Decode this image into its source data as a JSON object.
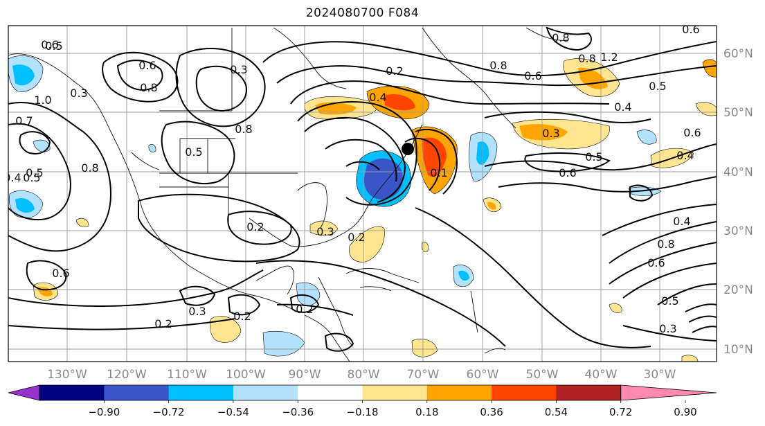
{
  "title": "2024080700 F084",
  "lon_labels": [
    "130°W",
    "120°W",
    "110°W",
    "100°W",
    "90°W",
    "80°W",
    "70°W",
    "60°W",
    "50°W",
    "40°W",
    "30°W"
  ],
  "lat_labels": [
    "60°N",
    "50°N",
    "40°N",
    "30°N",
    "20°N",
    "10°N"
  ],
  "colorbar": {
    "ticks": [
      "−0.90",
      "−0.72",
      "−0.54",
      "−0.36",
      "−0.18",
      "0.18",
      "0.36",
      "0.54",
      "0.72",
      "0.90"
    ],
    "colors": [
      "#9932cc",
      "#000080",
      "#3a55c8",
      "#00bfff",
      "#b3e2ff",
      "#ffffff",
      "#ffe58f",
      "#ffa500",
      "#ff4500",
      "#b22222",
      "#ff88b0"
    ]
  },
  "contour_labels": [
    "0.5",
    "0.3",
    "0.7",
    "0.6",
    "0.8",
    "1.0",
    "0.3",
    "0.5",
    "0.8",
    "0.4",
    "0.5",
    "0.8",
    "0.2",
    "0.3",
    "0.2",
    "0.3",
    "0.2",
    "0.2",
    "0.6",
    "0.5",
    "0.8",
    "0.6",
    "0.8",
    "1.2",
    "0.6",
    "0.5",
    "0.4",
    "0.3",
    "0.5",
    "0.6",
    "0.4",
    "0.6",
    "0.4",
    "0.8",
    "0.6",
    "0.5",
    "0.3",
    "0.2",
    "0.2",
    "0.1",
    "0.4",
    "0.8",
    "0.6"
  ],
  "marker": "storm-center-dot"
}
